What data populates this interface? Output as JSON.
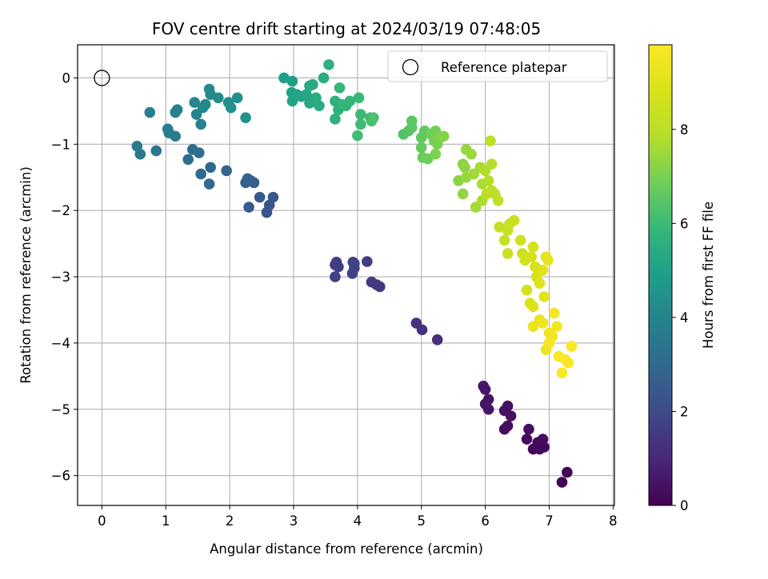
{
  "chart_data": {
    "type": "scatter",
    "title": "FOV centre drift starting at 2024/03/19 07:48:05",
    "xlabel": "Angular distance from reference (arcmin)",
    "ylabel": "Rotation from reference (arcmin)",
    "xlim": [
      -0.38,
      8.02
    ],
    "ylim": [
      -6.45,
      0.5
    ],
    "xticks": [
      0,
      1,
      2,
      3,
      4,
      5,
      6,
      7,
      8
    ],
    "yticks": [
      0,
      -1,
      -2,
      -3,
      -4,
      -5,
      -6
    ],
    "grid": true,
    "legend": {
      "placement": "top-right",
      "label": "Reference platepar"
    },
    "reference_point": {
      "x": 0,
      "y": 0
    },
    "colorbar": {
      "label": "Hours from first FF file",
      "min": 0,
      "max": 9.8,
      "ticks": [
        0,
        2,
        4,
        6,
        8
      ],
      "colormap": "viridis"
    },
    "series": [
      {
        "color_by": "hours",
        "points": [
          [
            7.2,
            -6.1,
            0.05
          ],
          [
            7.28,
            -5.95,
            0.1
          ],
          [
            6.75,
            -5.6,
            0.15
          ],
          [
            6.85,
            -5.6,
            0.18
          ],
          [
            6.92,
            -5.57,
            0.2
          ],
          [
            6.82,
            -5.5,
            0.22
          ],
          [
            6.9,
            -5.45,
            0.25
          ],
          [
            6.65,
            -5.45,
            0.28
          ],
          [
            6.68,
            -5.3,
            0.3
          ],
          [
            6.35,
            -5.25,
            0.33
          ],
          [
            6.3,
            -5.3,
            0.35
          ],
          [
            6.4,
            -5.1,
            0.38
          ],
          [
            6.3,
            -5.02,
            0.4
          ],
          [
            6.35,
            -4.95,
            0.42
          ],
          [
            6.05,
            -5.0,
            0.45
          ],
          [
            6.05,
            -4.85,
            0.48
          ],
          [
            6.0,
            -4.92,
            0.5
          ],
          [
            5.97,
            -4.65,
            0.52
          ],
          [
            6.0,
            -4.7,
            0.55
          ],
          [
            5.25,
            -3.95,
            1.2
          ],
          [
            4.92,
            -3.7,
            1.25
          ],
          [
            5.01,
            -3.8,
            1.28
          ],
          [
            4.35,
            -3.15,
            1.4
          ],
          [
            4.3,
            -3.12,
            1.45
          ],
          [
            4.22,
            -3.08,
            1.5
          ],
          [
            4.15,
            -2.77,
            1.55
          ],
          [
            3.65,
            -2.82,
            1.6
          ],
          [
            3.67,
            -2.78,
            1.62
          ],
          [
            3.7,
            -2.85,
            1.65
          ],
          [
            3.65,
            -3.0,
            1.68
          ],
          [
            3.92,
            -2.95,
            1.7
          ],
          [
            3.95,
            -2.87,
            1.72
          ],
          [
            3.93,
            -2.78,
            1.75
          ],
          [
            3.95,
            -2.8,
            1.78
          ],
          [
            2.58,
            -2.03,
            2.3
          ],
          [
            2.62,
            -1.92,
            2.35
          ],
          [
            2.68,
            -1.8,
            2.4
          ],
          [
            2.47,
            -1.8,
            2.45
          ],
          [
            2.3,
            -1.95,
            2.5
          ],
          [
            2.38,
            -1.58,
            2.55
          ],
          [
            2.33,
            -1.55,
            2.6
          ],
          [
            2.25,
            -1.58,
            2.65
          ],
          [
            2.28,
            -1.52,
            2.7
          ],
          [
            1.95,
            -1.4,
            2.9
          ],
          [
            1.7,
            -1.35,
            2.95
          ],
          [
            1.55,
            -1.45,
            3.0
          ],
          [
            1.68,
            -1.6,
            3.05
          ],
          [
            1.35,
            -1.23,
            3.1
          ],
          [
            1.42,
            -1.08,
            3.15
          ],
          [
            1.52,
            -1.13,
            3.2
          ],
          [
            0.85,
            -1.1,
            3.5
          ],
          [
            0.6,
            -1.15,
            3.55
          ],
          [
            0.55,
            -1.03,
            3.6
          ],
          [
            1.15,
            -0.88,
            3.65
          ],
          [
            1.05,
            -0.83,
            3.7
          ],
          [
            1.03,
            -0.77,
            3.75
          ],
          [
            0.75,
            -0.52,
            3.8
          ],
          [
            1.15,
            -0.52,
            3.85
          ],
          [
            1.18,
            -0.48,
            3.9
          ],
          [
            1.55,
            -0.7,
            3.95
          ],
          [
            1.48,
            -0.55,
            4.0
          ],
          [
            1.45,
            -0.37,
            4.05
          ],
          [
            1.62,
            -0.4,
            4.1
          ],
          [
            1.58,
            -0.45,
            4.15
          ],
          [
            1.68,
            -0.17,
            4.2
          ],
          [
            1.7,
            -0.25,
            4.25
          ],
          [
            1.82,
            -0.3,
            4.3
          ],
          [
            1.98,
            -0.37,
            4.35
          ],
          [
            2.02,
            -0.45,
            4.4
          ],
          [
            2.12,
            -0.3,
            4.45
          ],
          [
            2.25,
            -0.6,
            4.5
          ],
          [
            2.85,
            0.0,
            4.9
          ],
          [
            2.98,
            -0.05,
            4.95
          ],
          [
            2.97,
            -0.22,
            5.0
          ],
          [
            3.05,
            -0.25,
            5.05
          ],
          [
            2.98,
            -0.35,
            5.1
          ],
          [
            3.12,
            -0.28,
            5.15
          ],
          [
            3.2,
            -0.25,
            5.2
          ],
          [
            3.25,
            -0.38,
            5.25
          ],
          [
            3.25,
            -0.12,
            5.3
          ],
          [
            3.3,
            -0.1,
            5.35
          ],
          [
            3.35,
            -0.3,
            5.4
          ],
          [
            3.4,
            -0.42,
            5.45
          ],
          [
            3.47,
            0.0,
            5.5
          ],
          [
            3.55,
            0.2,
            5.55
          ],
          [
            3.65,
            -0.35,
            5.6
          ],
          [
            3.65,
            -0.62,
            5.65
          ],
          [
            3.7,
            -0.48,
            5.7
          ],
          [
            3.75,
            -0.4,
            5.75
          ],
          [
            3.82,
            -0.42,
            5.8
          ],
          [
            3.72,
            -0.15,
            5.85
          ],
          [
            3.88,
            -0.35,
            5.9
          ],
          [
            4.02,
            -0.3,
            5.95
          ],
          [
            4.05,
            -0.55,
            6.0
          ],
          [
            4.05,
            -0.7,
            6.05
          ],
          [
            4.0,
            -0.87,
            6.1
          ],
          [
            4.2,
            -0.6,
            6.15
          ],
          [
            4.22,
            -0.65,
            6.2
          ],
          [
            4.25,
            -0.6,
            6.25
          ],
          [
            4.72,
            -0.85,
            6.4
          ],
          [
            4.8,
            -0.8,
            6.45
          ],
          [
            4.85,
            -0.75,
            6.5
          ],
          [
            4.85,
            -0.65,
            6.55
          ],
          [
            5.0,
            -0.9,
            6.6
          ],
          [
            5.05,
            -0.8,
            6.65
          ],
          [
            5.0,
            -1.05,
            6.7
          ],
          [
            5.02,
            -1.2,
            6.75
          ],
          [
            5.1,
            -1.22,
            6.8
          ],
          [
            5.15,
            -0.85,
            6.85
          ],
          [
            5.22,
            -0.8,
            6.9
          ],
          [
            5.2,
            -0.95,
            6.95
          ],
          [
            5.25,
            -1.0,
            7.0
          ],
          [
            5.22,
            -1.15,
            7.05
          ],
          [
            5.3,
            -0.9,
            7.1
          ],
          [
            5.35,
            -0.88,
            7.15
          ],
          [
            5.58,
            -1.55,
            7.2
          ],
          [
            5.65,
            -1.3,
            7.25
          ],
          [
            5.68,
            -1.35,
            7.3
          ],
          [
            5.65,
            -1.75,
            7.35
          ],
          [
            5.7,
            -1.08,
            7.4
          ],
          [
            5.7,
            -1.5,
            7.45
          ],
          [
            5.78,
            -1.15,
            7.5
          ],
          [
            5.82,
            -1.45,
            7.55
          ],
          [
            5.85,
            -1.95,
            7.6
          ],
          [
            5.92,
            -1.35,
            7.65
          ],
          [
            5.95,
            -1.6,
            7.7
          ],
          [
            5.95,
            -1.85,
            7.75
          ],
          [
            6.0,
            -1.4,
            7.8
          ],
          [
            6.05,
            -1.55,
            7.85
          ],
          [
            6.1,
            -1.3,
            7.9
          ],
          [
            6.1,
            -1.7,
            7.95
          ],
          [
            6.15,
            -1.75,
            8.0
          ],
          [
            6.08,
            -0.95,
            8.05
          ],
          [
            6.02,
            -1.75,
            8.1
          ],
          [
            6.2,
            -1.85,
            8.15
          ],
          [
            6.22,
            -2.25,
            8.2
          ],
          [
            6.3,
            -2.45,
            8.25
          ],
          [
            6.35,
            -2.3,
            8.3
          ],
          [
            6.38,
            -2.2,
            8.35
          ],
          [
            6.45,
            -2.15,
            8.4
          ],
          [
            6.35,
            -2.65,
            8.45
          ],
          [
            6.55,
            -2.45,
            8.5
          ],
          [
            6.58,
            -2.65,
            8.55
          ],
          [
            6.62,
            -2.75,
            8.6
          ],
          [
            6.65,
            -3.2,
            8.65
          ],
          [
            6.75,
            -2.55,
            8.7
          ],
          [
            6.72,
            -2.7,
            8.75
          ],
          [
            6.78,
            -2.85,
            8.8
          ],
          [
            6.8,
            -3.0,
            8.85
          ],
          [
            6.7,
            -3.4,
            8.9
          ],
          [
            6.75,
            -3.45,
            8.95
          ],
          [
            6.85,
            -3.1,
            9.0
          ],
          [
            6.9,
            -2.9,
            9.05
          ],
          [
            6.92,
            -3.3,
            9.1
          ],
          [
            6.95,
            -2.7,
            9.15
          ],
          [
            6.98,
            -2.75,
            9.2
          ],
          [
            6.75,
            -3.75,
            9.25
          ],
          [
            6.85,
            -3.65,
            9.3
          ],
          [
            6.9,
            -3.7,
            9.35
          ],
          [
            6.95,
            -4.1,
            9.4
          ],
          [
            7.0,
            -3.85,
            9.45
          ],
          [
            7.05,
            -3.9,
            9.5
          ],
          [
            7.08,
            -3.55,
            9.55
          ],
          [
            7.12,
            -3.75,
            9.6
          ],
          [
            7.0,
            -4.0,
            9.65
          ],
          [
            7.15,
            -4.2,
            9.7
          ],
          [
            7.2,
            -4.45,
            9.72
          ],
          [
            7.25,
            -4.25,
            9.74
          ],
          [
            7.3,
            -4.3,
            9.76
          ],
          [
            7.35,
            -4.05,
            9.78
          ]
        ]
      }
    ]
  }
}
